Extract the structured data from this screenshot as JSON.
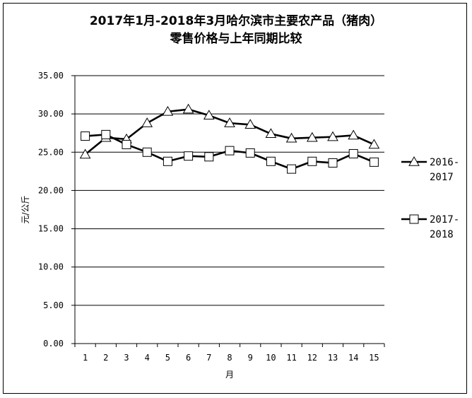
{
  "chart_data": {
    "type": "line",
    "title_line1": "2017年1月-2018年3月哈尔滨市主要农产品（猪肉）",
    "title_line2": "零售价格与上年同期比较",
    "xlabel": "月",
    "ylabel": "元/公斤",
    "ylim": [
      0,
      35
    ],
    "y_ticks": [
      "0.00",
      "5.00",
      "10.00",
      "15.00",
      "20.00",
      "25.00",
      "30.00",
      "35.00"
    ],
    "categories": [
      "1",
      "2",
      "3",
      "4",
      "5",
      "6",
      "7",
      "8",
      "9",
      "10",
      "11",
      "12",
      "13",
      "14",
      "15"
    ],
    "grid": true,
    "legend_position": "right",
    "series": [
      {
        "name_line1": "2016-",
        "name_line2": "2017",
        "marker": "triangle",
        "color": "#000000",
        "values": [
          24.7,
          26.9,
          26.7,
          28.8,
          30.3,
          30.6,
          29.8,
          28.8,
          28.6,
          27.4,
          26.8,
          26.9,
          27.0,
          27.2,
          26.0
        ]
      },
      {
        "name_line1": "2017-",
        "name_line2": "2018",
        "marker": "square",
        "color": "#000000",
        "values": [
          27.1,
          27.3,
          26.0,
          25.0,
          23.8,
          24.5,
          24.4,
          25.2,
          24.9,
          23.8,
          22.8,
          23.8,
          23.6,
          24.8,
          23.7
        ]
      }
    ]
  }
}
